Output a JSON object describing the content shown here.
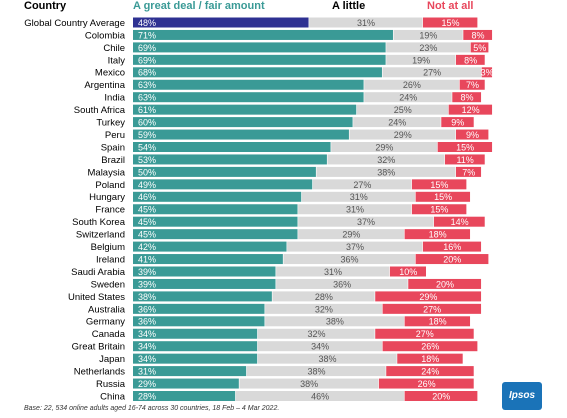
{
  "chart_data": {
    "type": "bar",
    "stacked": true,
    "orientation": "horizontal",
    "headers": {
      "country": "Country",
      "great_deal": "A great deal / fair amount",
      "a_little": "A little",
      "not_at_all": "Not at all"
    },
    "categories": [
      "Global Country Average",
      "Colombia",
      "Chile",
      "Italy",
      "Mexico",
      "Argentina",
      "India",
      "South Africa",
      "Turkey",
      "Peru",
      "Spain",
      "Brazil",
      "Malaysia",
      "Poland",
      "Hungary",
      "France",
      "South Korea",
      "Switzerland",
      "Belgium",
      "Ireland",
      "Saudi Arabia",
      "Sweden",
      "United States",
      "Australia",
      "Germany",
      "Canada",
      "Great Britain",
      "Japan",
      "Netherlands",
      "Russia",
      "China"
    ],
    "series": [
      {
        "name": "A great deal / fair amount",
        "color": "#3a9a96",
        "highlight_color": "#2e3192",
        "values": [
          48,
          71,
          69,
          69,
          68,
          63,
          63,
          61,
          60,
          59,
          54,
          53,
          50,
          49,
          46,
          45,
          45,
          45,
          42,
          41,
          39,
          39,
          38,
          36,
          36,
          34,
          34,
          34,
          31,
          29,
          28
        ]
      },
      {
        "name": "A little",
        "color": "#d9d9d9",
        "values": [
          31,
          19,
          23,
          19,
          27,
          26,
          24,
          25,
          24,
          29,
          29,
          32,
          38,
          27,
          31,
          31,
          37,
          29,
          37,
          36,
          31,
          36,
          28,
          32,
          38,
          32,
          34,
          38,
          38,
          38,
          46
        ]
      },
      {
        "name": "Not at all",
        "color": "#e8475c",
        "values": [
          15,
          8,
          5,
          8,
          3,
          7,
          8,
          12,
          9,
          9,
          15,
          11,
          7,
          15,
          15,
          15,
          14,
          18,
          16,
          20,
          10,
          20,
          29,
          27,
          18,
          27,
          26,
          18,
          24,
          26,
          20
        ]
      }
    ],
    "value_suffix": "%",
    "xlim": [
      0,
      100
    ]
  },
  "footnote": "Base: 22, 534 online adults aged 16-74 across 30 countries,  18 Feb – 4 Mar 2022.",
  "logo_text": "Ipsos"
}
